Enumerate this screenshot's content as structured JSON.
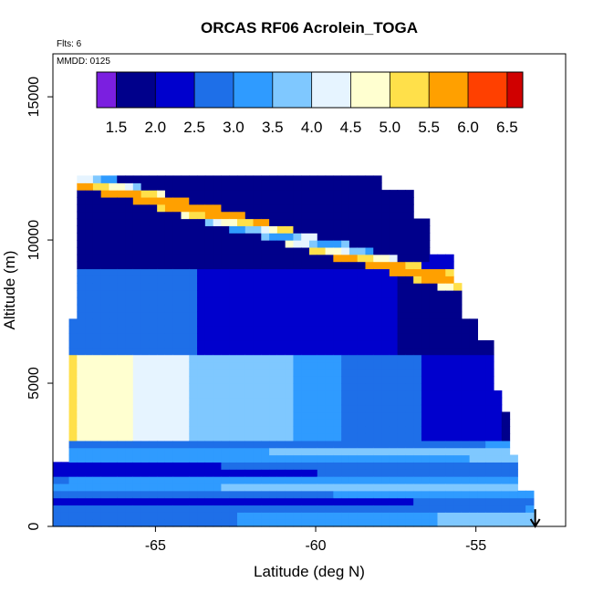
{
  "chart_data": {
    "type": "heatmap",
    "title": "ORCAS RF06 Acrolein_TOGA",
    "xlabel": "Latitude (deg N)",
    "ylabel": "Altitude (m)",
    "info_lines": [
      "Flts: 6",
      "MMDD: 0125"
    ],
    "xlim": [
      -68.2,
      -52.2
    ],
    "ylim": [
      0,
      16500
    ],
    "x_ticks": [
      -65,
      -60,
      -55
    ],
    "y_ticks": [
      0,
      5000,
      10000,
      15000
    ],
    "x_tick_labels": [
      "-65",
      "-60",
      "-55"
    ],
    "y_tick_labels": [
      "0",
      "5000",
      "10000",
      "15000"
    ],
    "colorbar": {
      "levels": [
        1.25,
        1.5,
        2.0,
        2.5,
        3.0,
        3.5,
        4.0,
        4.5,
        5.0,
        5.5,
        6.0,
        6.5,
        6.7
      ],
      "tick_labels": [
        "1.5",
        "2.0",
        "2.5",
        "3.0",
        "3.5",
        "4.0",
        "4.5",
        "5.0",
        "5.5",
        "6.0",
        "6.5"
      ],
      "colors": [
        "#7B1FE0",
        "#00008B",
        "#0000CD",
        "#1E6FE8",
        "#2F9BFF",
        "#7FC8FF",
        "#E6F4FF",
        "#FFFFD0",
        "#FFE04A",
        "#FFA000",
        "#FF4000",
        "#D00000",
        "#A01818"
      ]
    },
    "domain_outline": [
      [
        -68.2,
        0
      ],
      [
        -68.2,
        2300
      ],
      [
        -67.8,
        2300
      ],
      [
        -67.8,
        7300
      ],
      [
        -67.5,
        7300
      ],
      [
        -67.5,
        12300
      ],
      [
        -58.0,
        12300
      ],
      [
        -58.0,
        11800
      ],
      [
        -57.0,
        11800
      ],
      [
        -57.0,
        10800
      ],
      [
        -56.4,
        10800
      ],
      [
        -56.4,
        9400
      ],
      [
        -55.8,
        9400
      ],
      [
        -55.8,
        8400
      ],
      [
        -55.5,
        8400
      ],
      [
        -55.5,
        7300
      ],
      [
        -55.0,
        7300
      ],
      [
        -55.0,
        6600
      ],
      [
        -54.5,
        6600
      ],
      [
        -54.5,
        4800
      ],
      [
        -54.2,
        4800
      ],
      [
        -54.2,
        3900
      ],
      [
        -53.9,
        3900
      ],
      [
        -53.9,
        2500
      ],
      [
        -53.6,
        2500
      ],
      [
        -53.6,
        1200
      ],
      [
        -53.3,
        1200
      ],
      [
        -53.3,
        200
      ],
      [
        -52.9,
        0
      ]
    ],
    "profile_description": "Low values (1.5-2.5) aloft; moderate (2.8-3.5) in mid/lower troposphere; banded near-surface layers up to ~4.2; noisy high values (up to ~6.5) along the upper boundary near -66 to -62.",
    "arrow": {
      "x": -53.15,
      "y_from": 600,
      "y_to": 0
    }
  }
}
